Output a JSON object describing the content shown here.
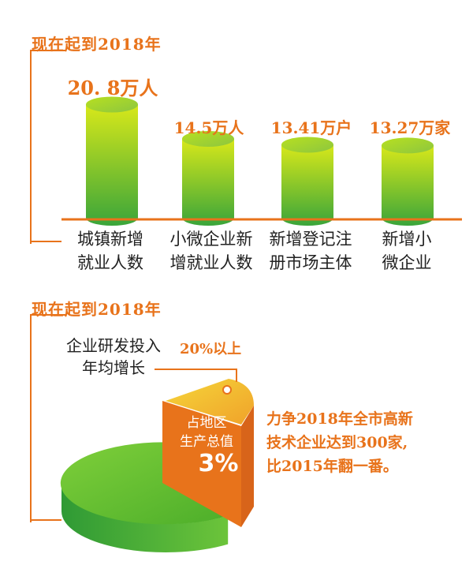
{
  "sections": [
    {
      "title": "现在起到2018年"
    },
    {
      "title": "现在起到2018年"
    }
  ],
  "chart_data": [
    {
      "type": "bar",
      "categories": [
        "城镇新增\n就业人数",
        "小微企业新\n增就业人数",
        "新增登记注\n册市场主体",
        "新增小\n微企业"
      ],
      "values": [
        20.8,
        14.5,
        13.41,
        13.27
      ],
      "value_labels": [
        "20. 8万人",
        "14.5万人",
        "13.41万户",
        "13.27万家"
      ],
      "colors": {
        "bar_top": "#d8e81a",
        "bar_bottom": "#3aa53a",
        "baseline": "#e8731b"
      }
    },
    {
      "type": "pie",
      "slices": [
        {
          "label": "占地区\n生产总值",
          "value": 3,
          "value_label": "3%",
          "color": "#e8731b"
        },
        {
          "value": 97,
          "color": "#5cbf2a"
        }
      ],
      "callout_label": "企业研发投入\n年均增长",
      "callout_value": "20%以上",
      "note": "力争2018年全市高新\n技术企业达到300家,\n比2015年翻一番。"
    }
  ]
}
